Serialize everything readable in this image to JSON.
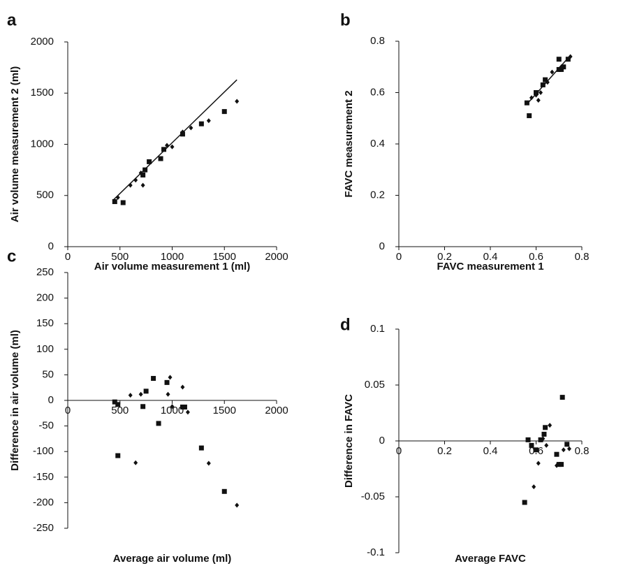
{
  "chart_data": [
    {
      "type": "scatter",
      "panel": "a",
      "xlabel": "Air volume measurement 1 (ml)",
      "ylabel": "Air volume measurement  2 (ml)",
      "xlim": [
        0,
        2000
      ],
      "xticks": [
        0,
        500,
        1000,
        1500,
        2000
      ],
      "ylim": [
        0,
        2000
      ],
      "yticks": [
        0,
        500,
        1000,
        1500,
        2000
      ],
      "series": [
        {
          "marker": "square",
          "color": "#111111",
          "x": [
            450,
            530,
            720,
            740,
            780,
            890,
            920,
            1100,
            1280,
            1500
          ],
          "values": [
            440,
            430,
            700,
            750,
            830,
            860,
            950,
            1100,
            1200,
            1320
          ]
        },
        {
          "marker": "diamond",
          "color": "#111111",
          "x": [
            480,
            600,
            650,
            700,
            720,
            950,
            1000,
            1100,
            1180,
            1350,
            1620
          ],
          "values": [
            480,
            600,
            650,
            720,
            600,
            990,
            975,
            1120,
            1160,
            1230,
            1420
          ]
        }
      ],
      "trendline": {
        "color": "#111111",
        "x": [
          430,
          1620
        ],
        "values": [
          450,
          1630
        ]
      }
    },
    {
      "type": "scatter",
      "panel": "b",
      "xlabel": "FAVC measurement 1",
      "ylabel": "FAVC measurement 2",
      "xlim": [
        0,
        0.8
      ],
      "xticks": [
        0,
        0.2,
        0.4,
        0.6,
        0.8
      ],
      "ylim": [
        0,
        0.8
      ],
      "yticks": [
        0,
        0.2,
        0.4,
        0.6,
        0.8
      ],
      "series": [
        {
          "marker": "square",
          "color": "#111111",
          "x": [
            0.56,
            0.57,
            0.6,
            0.63,
            0.64,
            0.7,
            0.7,
            0.71,
            0.72,
            0.74
          ],
          "values": [
            0.56,
            0.51,
            0.6,
            0.63,
            0.65,
            0.73,
            0.69,
            0.69,
            0.7,
            0.73
          ]
        },
        {
          "marker": "diamond",
          "color": "#111111",
          "x": [
            0.58,
            0.6,
            0.61,
            0.62,
            0.65,
            0.67,
            0.71,
            0.75
          ],
          "values": [
            0.58,
            0.59,
            0.57,
            0.6,
            0.64,
            0.68,
            0.7,
            0.74
          ]
        }
      ],
      "trendline": {
        "color": "#111111",
        "x": [
          0.56,
          0.75
        ],
        "values": [
          0.555,
          0.745
        ]
      }
    },
    {
      "type": "scatter",
      "panel": "c",
      "xlabel": "Average air volume (ml)",
      "ylabel": "Difference in air volume (ml)",
      "xlim": [
        0,
        2000
      ],
      "xticks": [
        0,
        500,
        1000,
        1500,
        2000
      ],
      "ylim": [
        -250,
        250
      ],
      "yticks": [
        -250,
        -200,
        -150,
        -100,
        -50,
        0,
        50,
        100,
        150,
        200,
        250
      ],
      "series": [
        {
          "marker": "square",
          "color": "#111111",
          "x": [
            450,
            480,
            480,
            720,
            750,
            820,
            870,
            950,
            1100,
            1120,
            1280,
            1500
          ],
          "values": [
            -3,
            -8,
            -108,
            -12,
            18,
            43,
            -45,
            35,
            -13,
            -13,
            -93,
            -178
          ]
        },
        {
          "marker": "diamond",
          "color": "#111111",
          "x": [
            600,
            650,
            700,
            960,
            980,
            1000,
            1100,
            1150,
            1350,
            1620
          ],
          "values": [
            10,
            -122,
            12,
            12,
            45,
            -12,
            26,
            -23,
            -123,
            -205
          ]
        }
      ]
    },
    {
      "type": "scatter",
      "panel": "d",
      "xlabel": "Average  FAVC",
      "ylabel": "Difference in FAVC",
      "xlim": [
        0,
        0.8
      ],
      "xticks": [
        0,
        0.2,
        0.4,
        0.6,
        0.8
      ],
      "ylim": [
        -0.1,
        0.1
      ],
      "yticks": [
        -0.1,
        -0.05,
        0,
        0.05,
        0.1
      ],
      "series": [
        {
          "marker": "square",
          "color": "#111111",
          "x": [
            0.55,
            0.565,
            0.58,
            0.6,
            0.62,
            0.635,
            0.64,
            0.69,
            0.7,
            0.71,
            0.715,
            0.735
          ],
          "values": [
            -0.055,
            0.001,
            -0.004,
            -0.008,
            0.001,
            0.006,
            0.012,
            -0.012,
            -0.021,
            -0.021,
            0.039,
            -0.003
          ]
        },
        {
          "marker": "diamond",
          "color": "#111111",
          "x": [
            0.59,
            0.61,
            0.63,
            0.645,
            0.66,
            0.69,
            0.72,
            0.745
          ],
          "values": [
            -0.041,
            -0.02,
            0.002,
            -0.004,
            0.014,
            -0.022,
            -0.008,
            -0.007
          ]
        }
      ]
    }
  ]
}
